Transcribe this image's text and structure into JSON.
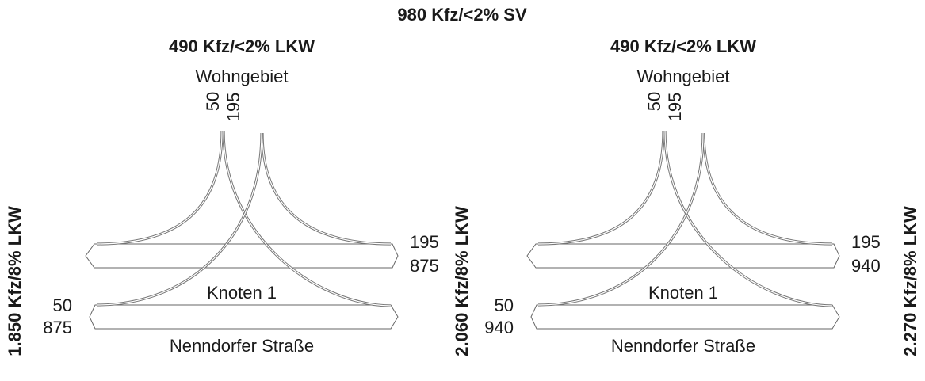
{
  "title": "980 Kfz/<2% SV",
  "cross_sections": [
    "1.850 Kfz/8% LKW",
    "2.060 Kfz/8% LKW",
    "2.270 Kfz/8% LKW"
  ],
  "panels": [
    {
      "top_label": "490 Kfz/<2% LKW",
      "area": "Wohngebiet",
      "north_flows": [
        50,
        195
      ],
      "east_flows": [
        195,
        875
      ],
      "west_flows": [
        50,
        875
      ],
      "node": "Knoten 1",
      "street": "Nenndorfer Straße"
    },
    {
      "top_label": "490 Kfz/<2% LKW",
      "area": "Wohngebiet",
      "north_flows": [
        50,
        195
      ],
      "east_flows": [
        195,
        940
      ],
      "west_flows": [
        50,
        940
      ],
      "node": "Knoten 1",
      "street": "Nenndorfer Straße"
    }
  ]
}
